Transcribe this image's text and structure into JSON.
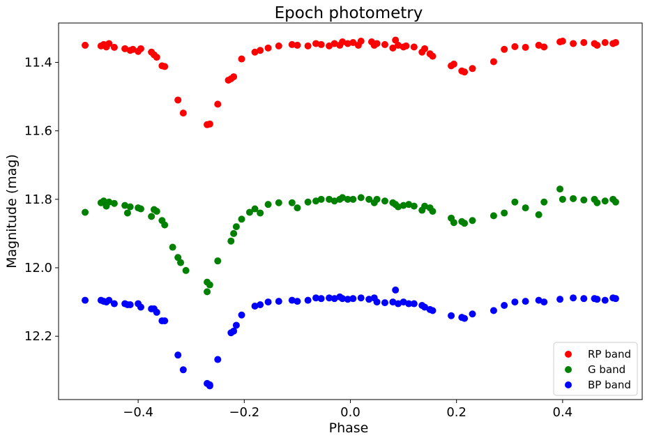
{
  "chart_data": {
    "type": "scatter",
    "title": "Epoch photometry",
    "xlabel": "Phase",
    "ylabel": "Magnitude (mag)",
    "xlim": [
      -0.55,
      0.55
    ],
    "ylim": [
      12.385,
      11.285
    ],
    "y_inverted": true,
    "x_ticks": [
      -0.4,
      -0.2,
      0.0,
      0.2,
      0.4
    ],
    "x_tick_labels": [
      "−0.4",
      "−0.2",
      "0.0",
      "0.2",
      "0.4"
    ],
    "y_ticks": [
      11.4,
      11.6,
      11.8,
      12.0,
      12.2
    ],
    "y_tick_labels": [
      "11.4",
      "11.6",
      "11.8",
      "12.0",
      "12.2"
    ],
    "grid": false,
    "legend_position": "bottom-right",
    "series": [
      {
        "name": "RP band",
        "color": "#ff0000",
        "x": [
          -0.5,
          -0.47,
          -0.465,
          -0.46,
          -0.455,
          -0.445,
          -0.425,
          -0.415,
          -0.41,
          -0.4,
          -0.395,
          -0.375,
          -0.37,
          -0.365,
          -0.355,
          -0.35,
          -0.325,
          -0.315,
          -0.27,
          -0.265,
          -0.25,
          -0.23,
          -0.225,
          -0.22,
          -0.205,
          -0.18,
          -0.17,
          -0.155,
          -0.135,
          -0.11,
          -0.1,
          -0.08,
          -0.065,
          -0.055,
          -0.04,
          -0.03,
          -0.02,
          -0.015,
          -0.005,
          0.005,
          0.015,
          0.02,
          0.04,
          0.045,
          0.05,
          0.065,
          0.08,
          0.085,
          0.09,
          0.1,
          0.105,
          0.12,
          0.135,
          0.14,
          0.15,
          0.155,
          0.19,
          0.195,
          0.21,
          0.215,
          0.23,
          0.27,
          0.29,
          0.31,
          0.33,
          0.355,
          0.365,
          0.395,
          0.4,
          0.42,
          0.44,
          0.46,
          0.465,
          0.48,
          0.495,
          0.5
        ],
        "y": [
          11.35,
          11.352,
          11.348,
          11.355,
          11.345,
          11.356,
          11.36,
          11.365,
          11.362,
          11.368,
          11.36,
          11.37,
          11.378,
          11.385,
          11.41,
          11.412,
          11.51,
          11.548,
          11.582,
          11.58,
          11.522,
          11.452,
          11.448,
          11.442,
          11.39,
          11.37,
          11.365,
          11.358,
          11.352,
          11.348,
          11.35,
          11.352,
          11.345,
          11.348,
          11.352,
          11.345,
          11.35,
          11.34,
          11.345,
          11.342,
          11.35,
          11.338,
          11.34,
          11.35,
          11.345,
          11.348,
          11.358,
          11.335,
          11.35,
          11.355,
          11.352,
          11.355,
          11.37,
          11.36,
          11.375,
          11.382,
          11.41,
          11.405,
          11.425,
          11.428,
          11.418,
          11.398,
          11.362,
          11.354,
          11.356,
          11.35,
          11.355,
          11.34,
          11.338,
          11.345,
          11.342,
          11.345,
          11.35,
          11.342,
          11.345,
          11.342
        ]
      },
      {
        "name": "G band",
        "color": "#008000",
        "x": [
          -0.5,
          -0.47,
          -0.465,
          -0.46,
          -0.455,
          -0.445,
          -0.425,
          -0.42,
          -0.415,
          -0.4,
          -0.395,
          -0.375,
          -0.37,
          -0.365,
          -0.355,
          -0.35,
          -0.335,
          -0.325,
          -0.32,
          -0.31,
          -0.27,
          -0.265,
          -0.27,
          -0.25,
          -0.225,
          -0.22,
          -0.215,
          -0.205,
          -0.19,
          -0.18,
          -0.17,
          -0.155,
          -0.135,
          -0.11,
          -0.1,
          -0.08,
          -0.065,
          -0.055,
          -0.04,
          -0.03,
          -0.02,
          -0.015,
          -0.005,
          0.005,
          0.02,
          0.035,
          0.045,
          0.05,
          0.065,
          0.08,
          0.085,
          0.09,
          0.1,
          0.11,
          0.12,
          0.135,
          0.14,
          0.15,
          0.155,
          0.19,
          0.195,
          0.21,
          0.215,
          0.23,
          0.27,
          0.29,
          0.31,
          0.33,
          0.355,
          0.365,
          0.395,
          0.4,
          0.42,
          0.44,
          0.46,
          0.465,
          0.48,
          0.495,
          0.5
        ],
        "y": [
          11.838,
          11.81,
          11.805,
          11.82,
          11.808,
          11.812,
          11.818,
          11.84,
          11.822,
          11.825,
          11.828,
          11.85,
          11.83,
          11.835,
          11.862,
          11.875,
          11.94,
          11.97,
          11.985,
          12.008,
          12.042,
          12.05,
          12.07,
          11.98,
          11.922,
          11.9,
          11.88,
          11.858,
          11.838,
          11.828,
          11.84,
          11.815,
          11.81,
          11.81,
          11.825,
          11.808,
          11.805,
          11.8,
          11.8,
          11.805,
          11.8,
          11.795,
          11.8,
          11.8,
          11.795,
          11.8,
          11.81,
          11.8,
          11.805,
          11.81,
          11.815,
          11.822,
          11.818,
          11.815,
          11.82,
          11.832,
          11.82,
          11.825,
          11.835,
          11.855,
          11.868,
          11.865,
          11.87,
          11.862,
          11.848,
          11.84,
          11.808,
          11.825,
          11.845,
          11.808,
          11.77,
          11.8,
          11.798,
          11.802,
          11.8,
          11.81,
          11.805,
          11.8,
          11.808
        ]
      },
      {
        "name": "BP band",
        "color": "#0000ff",
        "x": [
          -0.5,
          -0.47,
          -0.465,
          -0.46,
          -0.455,
          -0.445,
          -0.425,
          -0.42,
          -0.415,
          -0.4,
          -0.395,
          -0.375,
          -0.37,
          -0.365,
          -0.355,
          -0.35,
          -0.325,
          -0.315,
          -0.27,
          -0.265,
          -0.265,
          -0.25,
          -0.225,
          -0.22,
          -0.215,
          -0.205,
          -0.18,
          -0.17,
          -0.155,
          -0.135,
          -0.11,
          -0.1,
          -0.08,
          -0.065,
          -0.055,
          -0.04,
          -0.03,
          -0.02,
          -0.015,
          -0.005,
          0.005,
          0.02,
          0.035,
          0.045,
          0.05,
          0.065,
          0.08,
          0.085,
          0.09,
          0.1,
          0.11,
          0.12,
          0.135,
          0.14,
          0.15,
          0.155,
          0.19,
          0.21,
          0.215,
          0.23,
          0.27,
          0.29,
          0.31,
          0.33,
          0.355,
          0.365,
          0.395,
          0.42,
          0.44,
          0.46,
          0.465,
          0.48,
          0.495,
          0.5
        ],
        "y": [
          12.095,
          12.095,
          12.098,
          12.1,
          12.095,
          12.105,
          12.105,
          12.108,
          12.108,
          12.105,
          12.115,
          12.12,
          12.12,
          12.13,
          12.155,
          12.155,
          12.255,
          12.298,
          12.338,
          12.342,
          12.345,
          12.268,
          12.19,
          12.185,
          12.168,
          12.138,
          12.112,
          12.108,
          12.1,
          12.098,
          12.095,
          12.098,
          12.095,
          12.088,
          12.09,
          12.088,
          12.09,
          12.085,
          12.09,
          12.092,
          12.09,
          12.088,
          12.092,
          12.088,
          12.1,
          12.102,
          12.1,
          12.065,
          12.105,
          12.1,
          12.105,
          12.105,
          12.11,
          12.115,
          12.122,
          12.125,
          12.14,
          12.145,
          12.148,
          12.135,
          12.125,
          12.11,
          12.1,
          12.098,
          12.095,
          12.1,
          12.092,
          12.088,
          12.09,
          12.09,
          12.092,
          12.095,
          12.088,
          12.09
        ]
      }
    ]
  }
}
